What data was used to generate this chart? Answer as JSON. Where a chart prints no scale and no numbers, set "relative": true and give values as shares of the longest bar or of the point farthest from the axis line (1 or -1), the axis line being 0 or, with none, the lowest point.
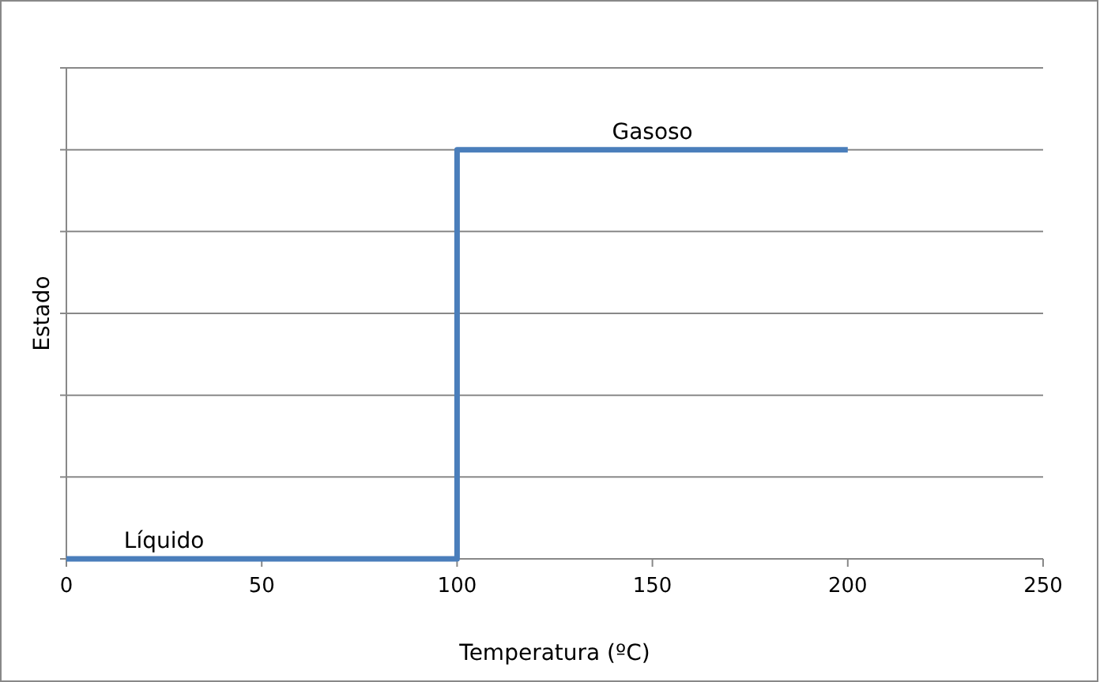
{
  "chart_data": {
    "type": "step",
    "xlabel": "Temperatura (ºC)",
    "ylabel": "Estado",
    "x": [
      0,
      100,
      200
    ],
    "relative": true,
    "series": [
      {
        "color": "#4a7ebb",
        "values": [
          0,
          1,
          1
        ]
      }
    ],
    "xlim": [
      0,
      250
    ],
    "xticks": [
      0,
      50,
      100,
      150,
      200,
      250
    ],
    "grid": "y",
    "tick_labels": "x",
    "annotations": [
      {
        "text": "Líquido",
        "x": 25,
        "y": 0
      },
      {
        "text": "Gasoso",
        "x": 150,
        "y": 1
      }
    ]
  }
}
